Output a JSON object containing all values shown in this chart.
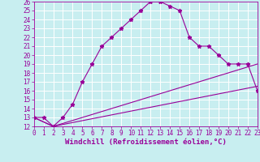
{
  "xlabel": "Windchill (Refroidissement éolien,°C)",
  "bg_color": "#c8eef0",
  "line_color": "#990099",
  "grid_color": "#ffffff",
  "xlim": [
    0,
    23
  ],
  "ylim": [
    12,
    26
  ],
  "xticks": [
    0,
    1,
    2,
    3,
    4,
    5,
    6,
    7,
    8,
    9,
    10,
    11,
    12,
    13,
    14,
    15,
    16,
    17,
    18,
    19,
    20,
    21,
    22,
    23
  ],
  "yticks": [
    12,
    13,
    14,
    15,
    16,
    17,
    18,
    19,
    20,
    21,
    22,
    23,
    24,
    25,
    26
  ],
  "line1_x": [
    0,
    1,
    2,
    3,
    4,
    5,
    6,
    7,
    8,
    9,
    10,
    11,
    12,
    13,
    14,
    15,
    16,
    17,
    18,
    19,
    20,
    21,
    22,
    23
  ],
  "line1_y": [
    13,
    13,
    12,
    13,
    14.5,
    17,
    19,
    21,
    22,
    23,
    24,
    25,
    26,
    26,
    25.5,
    25,
    22,
    21,
    21,
    20,
    19,
    19,
    19,
    16
  ],
  "line2_x": [
    0,
    2,
    23
  ],
  "line2_y": [
    13,
    12,
    19
  ],
  "line3_x": [
    0,
    2,
    23
  ],
  "line3_y": [
    13,
    12,
    16.5
  ],
  "marker": "*",
  "markersize": 3.5,
  "linewidth": 0.8,
  "tick_fontsize": 5.5,
  "label_fontsize": 6.5
}
